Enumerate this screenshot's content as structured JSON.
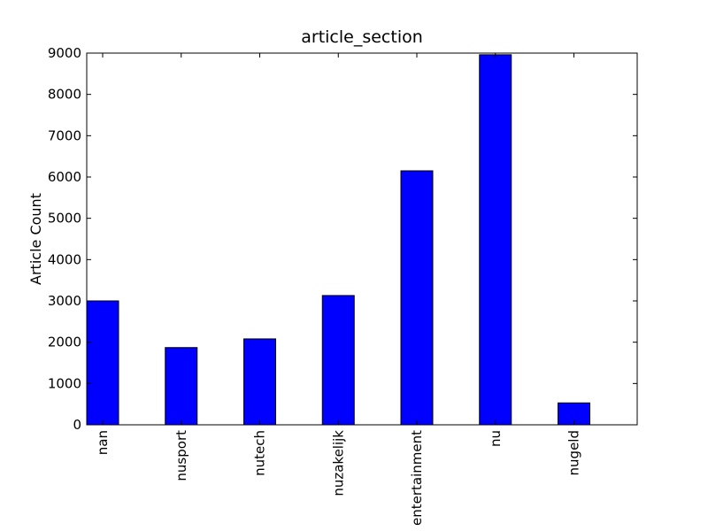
{
  "chart_data": {
    "type": "bar",
    "title": "article_section",
    "xlabel": "",
    "ylabel": "Article Count",
    "categories": [
      "nan",
      "nusport",
      "nutech",
      "nuzakelijk",
      "entertainment",
      "nu",
      "nugeld"
    ],
    "values": [
      3000,
      1870,
      2080,
      3130,
      6150,
      8960,
      530
    ],
    "ylim": [
      0,
      9000
    ],
    "yticks": [
      "0",
      "1000",
      "2000",
      "3000",
      "4000",
      "5000",
      "6000",
      "7000",
      "8000",
      "9000"
    ],
    "bar_color": "#0000ff",
    "edge_color": "#000000",
    "grid": false,
    "legend": "none"
  }
}
